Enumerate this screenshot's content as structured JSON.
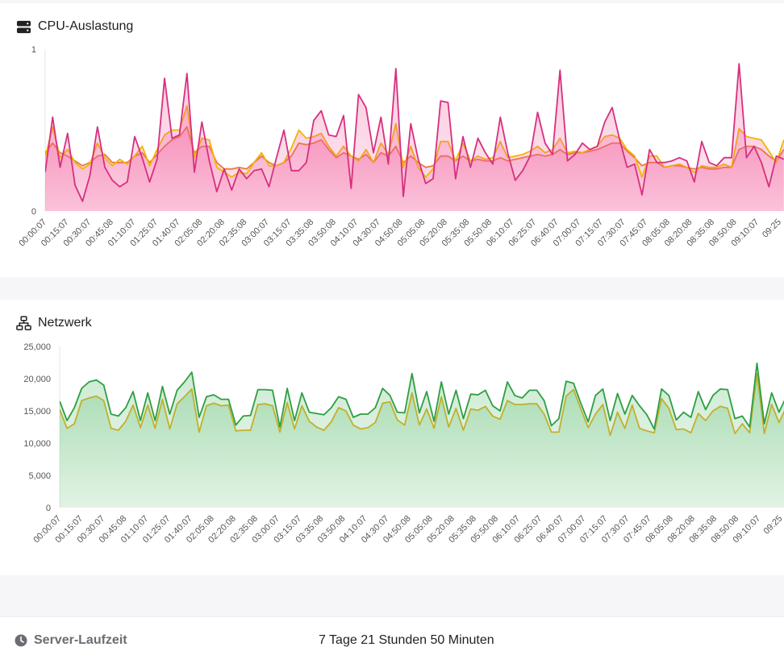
{
  "cpu_card": {
    "title": "CPU-Auslastung",
    "icon": "server-icon"
  },
  "network_card": {
    "title": "Netzwerk",
    "icon": "network-icon"
  },
  "footer": {
    "label": "Server-Laufzeit",
    "icon": "clock-icon",
    "value": "7 Tage 21 Stunden 50 Minuten"
  },
  "chart_data": [
    {
      "type": "line",
      "name": "cpu",
      "title": "",
      "ylim": [
        0,
        1
      ],
      "yticks": [
        "0",
        "1"
      ],
      "area_fill": true,
      "x_tick_labels": [
        "00:00:07",
        "00:15:07",
        "00:30:07",
        "00:45:08",
        "01:10:07",
        "01:25:07",
        "01:40:07",
        "02:05:08",
        "02:20:08",
        "02:35:08",
        "03:00:07",
        "03:15:07",
        "03:35:08",
        "03:50:08",
        "04:10:07",
        "04:30:07",
        "04:50:08",
        "05:05:08",
        "05:20:08",
        "05:35:08",
        "05:50:08",
        "06:10:07",
        "06:25:07",
        "06:40:07",
        "07:00:07",
        "07:15:07",
        "07:30:07",
        "07:45:07",
        "08:05:08",
        "08:20:08",
        "08:35:08",
        "08:50:08",
        "09:10:07",
        "09:25"
      ],
      "series": [
        {
          "color": "#d6307f",
          "values": [
            0.24,
            0.58,
            0.27,
            0.48,
            0.16,
            0.06,
            0.22,
            0.52,
            0.27,
            0.19,
            0.15,
            0.18,
            0.46,
            0.33,
            0.18,
            0.32,
            0.82,
            0.45,
            0.47,
            0.85,
            0.24,
            0.55,
            0.31,
            0.12,
            0.26,
            0.13,
            0.26,
            0.2,
            0.25,
            0.26,
            0.15,
            0.33,
            0.5,
            0.25,
            0.25,
            0.3,
            0.56,
            0.62,
            0.47,
            0.46,
            0.59,
            0.14,
            0.72,
            0.64,
            0.36,
            0.58,
            0.29,
            0.88,
            0.09,
            0.54,
            0.32,
            0.17,
            0.2,
            0.68,
            0.67,
            0.2,
            0.46,
            0.27,
            0.45,
            0.36,
            0.29,
            0.58,
            0.36,
            0.19,
            0.25,
            0.34,
            0.61,
            0.42,
            0.35,
            0.87,
            0.31,
            0.35,
            0.42,
            0.38,
            0.4,
            0.55,
            0.64,
            0.44,
            0.27,
            0.29,
            0.1,
            0.38,
            0.3,
            0.3,
            0.31,
            0.33,
            0.31,
            0.18,
            0.43,
            0.3,
            0.28,
            0.33,
            0.33,
            0.91,
            0.33,
            0.4,
            0.3,
            0.15,
            0.34,
            0.32
          ]
        },
        {
          "color": "#f4b400",
          "values": [
            0.33,
            0.52,
            0.33,
            0.38,
            0.3,
            0.26,
            0.29,
            0.42,
            0.33,
            0.28,
            0.32,
            0.29,
            0.34,
            0.4,
            0.28,
            0.38,
            0.47,
            0.5,
            0.5,
            0.65,
            0.33,
            0.45,
            0.44,
            0.27,
            0.24,
            0.21,
            0.24,
            0.23,
            0.3,
            0.36,
            0.28,
            0.28,
            0.3,
            0.39,
            0.5,
            0.45,
            0.46,
            0.48,
            0.4,
            0.34,
            0.4,
            0.34,
            0.31,
            0.38,
            0.3,
            0.42,
            0.35,
            0.54,
            0.27,
            0.4,
            0.27,
            0.21,
            0.26,
            0.43,
            0.43,
            0.31,
            0.42,
            0.31,
            0.34,
            0.32,
            0.33,
            0.43,
            0.33,
            0.34,
            0.35,
            0.37,
            0.4,
            0.36,
            0.38,
            0.45,
            0.36,
            0.37,
            0.36,
            0.38,
            0.4,
            0.46,
            0.47,
            0.45,
            0.38,
            0.34,
            0.21,
            0.34,
            0.34,
            0.27,
            0.28,
            0.29,
            0.27,
            0.24,
            0.28,
            0.27,
            0.27,
            0.29,
            0.27,
            0.51,
            0.46,
            0.45,
            0.44,
            0.37,
            0.3,
            0.44
          ]
        },
        {
          "color": "#e87b3a",
          "values": [
            0.36,
            0.42,
            0.36,
            0.34,
            0.31,
            0.28,
            0.3,
            0.34,
            0.35,
            0.3,
            0.3,
            0.3,
            0.34,
            0.36,
            0.3,
            0.35,
            0.4,
            0.44,
            0.46,
            0.52,
            0.36,
            0.4,
            0.4,
            0.3,
            0.26,
            0.26,
            0.27,
            0.26,
            0.3,
            0.34,
            0.3,
            0.28,
            0.3,
            0.34,
            0.42,
            0.41,
            0.42,
            0.44,
            0.38,
            0.33,
            0.36,
            0.34,
            0.32,
            0.35,
            0.3,
            0.36,
            0.34,
            0.4,
            0.3,
            0.34,
            0.3,
            0.27,
            0.28,
            0.34,
            0.34,
            0.31,
            0.34,
            0.31,
            0.32,
            0.31,
            0.31,
            0.33,
            0.31,
            0.32,
            0.33,
            0.34,
            0.35,
            0.34,
            0.35,
            0.38,
            0.35,
            0.36,
            0.36,
            0.37,
            0.38,
            0.4,
            0.42,
            0.42,
            0.37,
            0.33,
            0.28,
            0.3,
            0.3,
            0.27,
            0.28,
            0.28,
            0.27,
            0.26,
            0.27,
            0.26,
            0.26,
            0.27,
            0.27,
            0.38,
            0.4,
            0.4,
            0.38,
            0.34,
            0.31,
            0.38
          ]
        }
      ]
    },
    {
      "type": "line",
      "name": "network",
      "title": "",
      "ylim": [
        0,
        25000
      ],
      "yticks": [
        "0",
        "5,000",
        "10,000",
        "15,000",
        "20,000",
        "25,000"
      ],
      "area_fill": true,
      "x_tick_labels": [
        "00:00:07",
        "00:15:07",
        "00:30:07",
        "00:45:08",
        "01:10:07",
        "01:25:07",
        "01:40:07",
        "02:05:08",
        "02:20:08",
        "02:35:08",
        "03:00:07",
        "03:15:07",
        "03:35:08",
        "03:50:08",
        "04:10:07",
        "04:30:07",
        "04:50:08",
        "05:05:08",
        "05:20:08",
        "05:35:08",
        "05:50:08",
        "06:10:07",
        "06:25:07",
        "06:40:07",
        "07:00:07",
        "07:15:07",
        "07:30:07",
        "07:45:07",
        "08:05:08",
        "08:20:08",
        "08:35:08",
        "08:50:08",
        "09:10:07",
        "09:25"
      ],
      "series": [
        {
          "color": "#2e9e44",
          "values": [
            16500,
            13500,
            15500,
            18500,
            19500,
            19800,
            19000,
            14500,
            14200,
            15500,
            18000,
            13500,
            17800,
            13500,
            18800,
            14500,
            18200,
            19500,
            21000,
            14000,
            17200,
            17500,
            16800,
            16800,
            12800,
            14200,
            14300,
            18300,
            18300,
            18200,
            12500,
            18500,
            13500,
            17800,
            14800,
            14600,
            14400,
            15500,
            17200,
            16800,
            14000,
            14500,
            14500,
            15500,
            18500,
            17400,
            14800,
            14700,
            20800,
            14700,
            18000,
            13400,
            19500,
            14500,
            18200,
            13800,
            17600,
            17500,
            18200,
            15800,
            15000,
            19500,
            17400,
            17000,
            18200,
            18200,
            16600,
            12700,
            13800,
            19600,
            19300,
            16200,
            13300,
            17400,
            18400,
            13500,
            17700,
            14500,
            17400,
            15800,
            14400,
            12200,
            18400,
            17400,
            13600,
            14800,
            14000,
            18000,
            15200,
            17400,
            18400,
            18300,
            13800,
            14200,
            12500,
            22400,
            13000,
            17800,
            14800,
            17200
          ]
        },
        {
          "color": "#e0b020",
          "values": [
            15200,
            12300,
            13000,
            16600,
            17000,
            17300,
            16600,
            12300,
            12000,
            13400,
            15900,
            12400,
            15900,
            12300,
            16800,
            12200,
            16100,
            17200,
            18400,
            11700,
            15800,
            16200,
            15800,
            15900,
            11900,
            12000,
            12000,
            16000,
            16100,
            15800,
            11700,
            16300,
            12200,
            15800,
            13400,
            12500,
            12000,
            13300,
            15500,
            15000,
            12800,
            12200,
            12400,
            13200,
            16200,
            16400,
            13600,
            12800,
            17800,
            12800,
            15300,
            12300,
            17200,
            12500,
            15400,
            12000,
            15300,
            15100,
            15700,
            14200,
            13700,
            16600,
            16000,
            16000,
            16100,
            16100,
            14500,
            11700,
            11700,
            17300,
            18300,
            15300,
            12400,
            14500,
            16000,
            11200,
            14800,
            12300,
            15900,
            12300,
            11900,
            11600,
            16900,
            15400,
            12100,
            12200,
            11600,
            14600,
            13500,
            15000,
            15700,
            15400,
            11500,
            13000,
            11600,
            20800,
            11500,
            16000,
            13200,
            15600
          ]
        }
      ]
    }
  ]
}
